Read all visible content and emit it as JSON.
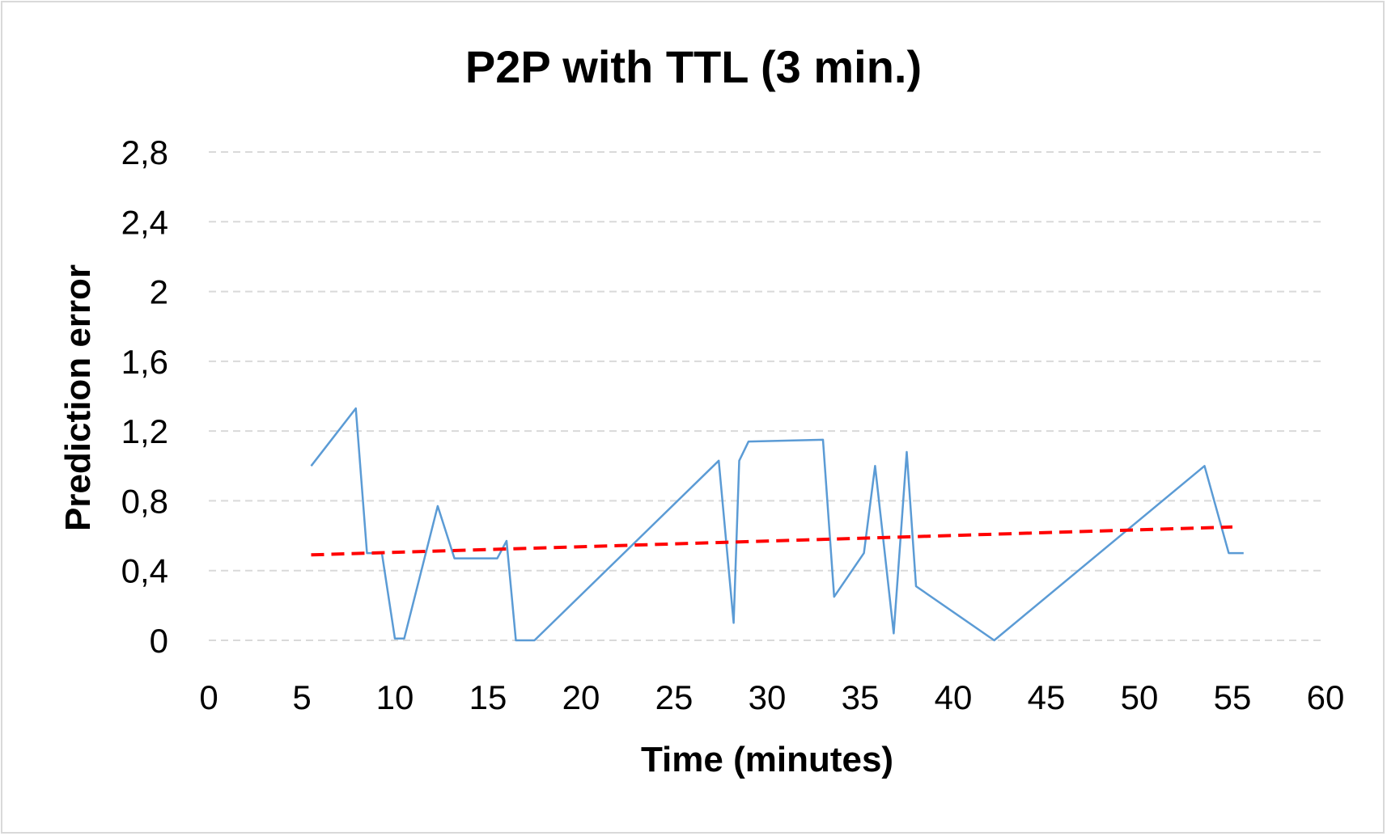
{
  "chart_data": {
    "type": "line",
    "title": "P2P with TTL (3 min.)",
    "xlabel": "Time (minutes)",
    "ylabel": "Prediction error",
    "xlim": [
      0,
      60
    ],
    "ylim": [
      0,
      2.8
    ],
    "x_ticks": [
      "0",
      "5",
      "10",
      "15",
      "20",
      "25",
      "30",
      "35",
      "40",
      "45",
      "50",
      "55",
      "60"
    ],
    "y_ticks": [
      "0",
      "0,4",
      "0,8",
      "1,2",
      "1,6",
      "2",
      "2,4",
      "2,8"
    ],
    "grid": "horizontal dashed",
    "legend": "none",
    "series": [
      {
        "kind": "data",
        "color": "#5b9bd5",
        "points": [
          [
            5.5,
            1.0
          ],
          [
            7.9,
            1.33
          ],
          [
            8.5,
            0.5
          ],
          [
            9.3,
            0.5
          ],
          [
            10.0,
            0.01
          ],
          [
            10.5,
            0.01
          ],
          [
            12.3,
            0.77
          ],
          [
            13.2,
            0.47
          ],
          [
            15.5,
            0.47
          ],
          [
            16.0,
            0.57
          ],
          [
            16.5,
            0.0
          ],
          [
            17.5,
            0.0
          ],
          [
            27.4,
            1.03
          ],
          [
            28.2,
            0.1
          ],
          [
            28.5,
            1.03
          ],
          [
            29.0,
            1.14
          ],
          [
            33.0,
            1.15
          ],
          [
            33.6,
            0.25
          ],
          [
            35.2,
            0.5
          ],
          [
            35.8,
            1.0
          ],
          [
            36.8,
            0.04
          ],
          [
            37.5,
            1.08
          ],
          [
            38.0,
            0.31
          ],
          [
            42.2,
            0.0
          ],
          [
            53.5,
            1.0
          ],
          [
            54.8,
            0.5
          ],
          [
            55.6,
            0.5
          ]
        ]
      },
      {
        "kind": "trendline",
        "color": "#ff0000",
        "dashed": true,
        "points": [
          [
            5.5,
            0.49
          ],
          [
            55.0,
            0.65
          ]
        ]
      }
    ]
  }
}
